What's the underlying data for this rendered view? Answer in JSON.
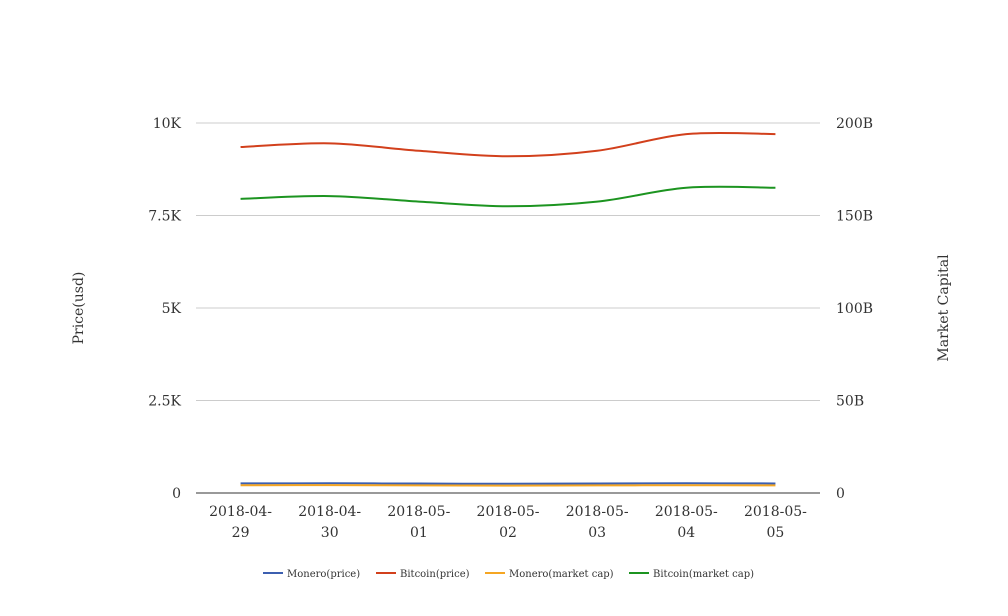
{
  "chart_data": {
    "type": "line",
    "x": [
      "2018-04-29",
      "2018-04-30",
      "2018-05-01",
      "2018-05-02",
      "2018-05-03",
      "2018-05-04",
      "2018-05-05"
    ],
    "x_tick_lines": [
      [
        "2018-04-",
        "29"
      ],
      [
        "2018-04-",
        "30"
      ],
      [
        "2018-05-",
        "01"
      ],
      [
        "2018-05-",
        "02"
      ],
      [
        "2018-05-",
        "03"
      ],
      [
        "2018-05-",
        "04"
      ],
      [
        "2018-05-",
        "05"
      ]
    ],
    "ylabel": "Price(usd)",
    "y2label": "Market Capital",
    "ylim": [
      0,
      10000
    ],
    "y2lim": [
      0,
      200000000000
    ],
    "y_ticks": [
      0,
      2500,
      5000,
      7500,
      10000
    ],
    "y_tick_labels": [
      "0",
      "2.5K",
      "5K",
      "7.5K",
      "10K"
    ],
    "y2_ticks": [
      0,
      50000000000,
      100000000000,
      150000000000,
      200000000000
    ],
    "y2_tick_labels": [
      "0",
      "50B",
      "100B",
      "150B",
      "200B"
    ],
    "grid": true,
    "legend_position": "bottom-center",
    "series": [
      {
        "name": "Monero(price)",
        "axis": "left",
        "color": "#3c5fb0",
        "values": [
          260,
          262,
          255,
          250,
          258,
          262,
          258
        ]
      },
      {
        "name": "Bitcoin(price)",
        "axis": "right",
        "color": "#d2401c",
        "values": [
          187000000000,
          189000000000,
          185000000000,
          182000000000,
          185000000000,
          194000000000,
          194000000000
        ]
      },
      {
        "name": "Monero(market cap)",
        "axis": "right",
        "color": "#f5a623",
        "values": [
          4200000000,
          4250000000,
          4100000000,
          4000000000,
          4100000000,
          4200000000,
          4100000000
        ]
      },
      {
        "name": "Bitcoin(market cap)",
        "axis": "right",
        "color": "#1c9420",
        "values": [
          159000000000,
          160500000000,
          157500000000,
          155000000000,
          157500000000,
          165000000000,
          165000000000
        ]
      }
    ]
  }
}
